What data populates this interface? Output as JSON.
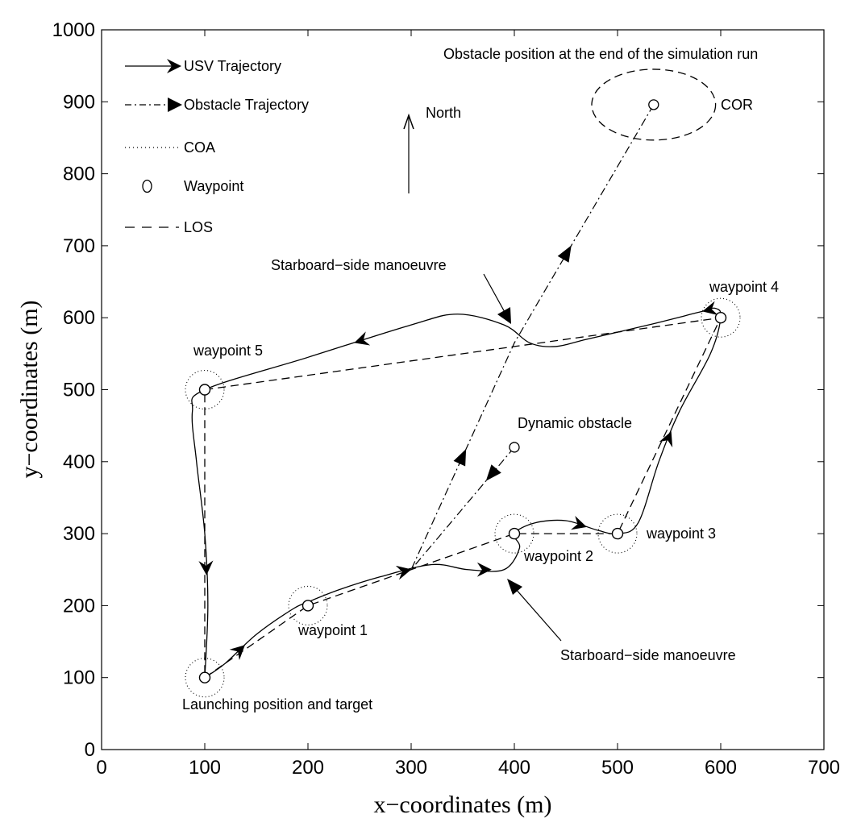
{
  "chart_data": {
    "type": "line",
    "xlabel": "x−coordinates (m)",
    "ylabel": "y−coordinates (m)",
    "xlim": [
      0,
      700
    ],
    "ylim": [
      0,
      1000
    ],
    "xticks": [
      0,
      100,
      200,
      300,
      400,
      500,
      600,
      700
    ],
    "yticks": [
      0,
      100,
      200,
      300,
      400,
      500,
      600,
      700,
      800,
      900,
      1000
    ],
    "grid": false,
    "legend_placement": "top-left",
    "legend": [
      {
        "label": "USV Trajectory",
        "style": "solid-arrow"
      },
      {
        "label": "Obstacle Trajectory",
        "style": "dashdot-triangle"
      },
      {
        "label": "COA",
        "style": "dotted"
      },
      {
        "label": "Waypoint",
        "style": "circle-marker"
      },
      {
        "label": "LOS",
        "style": "dashed"
      }
    ],
    "north_label": "North",
    "waypoints": [
      {
        "name": "Launching position and target",
        "x": 100,
        "y": 100
      },
      {
        "name": "waypoint 1",
        "x": 200,
        "y": 200
      },
      {
        "name": "waypoint 2",
        "x": 400,
        "y": 300
      },
      {
        "name": "waypoint 3",
        "x": 500,
        "y": 300
      },
      {
        "name": "waypoint 4",
        "x": 600,
        "y": 600
      },
      {
        "name": "waypoint 5",
        "x": 100,
        "y": 500
      }
    ],
    "annotations": [
      "Launching position and target",
      "waypoint 1",
      "waypoint 2",
      "waypoint 3",
      "waypoint 4",
      "waypoint 5",
      "Dynamic obstacle",
      "Starboard−side manoeuvre",
      "Starboard−side manoeuvre",
      "Obstacle position at the end of the simulation run",
      "COR"
    ],
    "series": [
      {
        "name": "LOS",
        "x": [
          100,
          200,
          400,
          500,
          600,
          100,
          100
        ],
        "y": [
          100,
          200,
          300,
          300,
          600,
          500,
          100
        ]
      },
      {
        "name": "USV Trajectory",
        "x": [
          100,
          120,
          150,
          185,
          200,
          230,
          270,
          320,
          355,
          390,
          405,
          400,
          420,
          450,
          480,
          500,
          520,
          540,
          560,
          590,
          600,
          595,
          580,
          530,
          470,
          440,
          415,
          390,
          345,
          300,
          200,
          100,
          88,
          92,
          100,
          103,
          100
        ],
        "y": [
          100,
          120,
          160,
          195,
          205,
          222,
          240,
          257,
          250,
          250,
          280,
          300,
          315,
          318,
          305,
          300,
          315,
          400,
          470,
          550,
          600,
          613,
          608,
          590,
          570,
          560,
          565,
          590,
          605,
          590,
          545,
          500,
          470,
          400,
          300,
          200,
          100
        ]
      },
      {
        "name": "Obstacle Trajectory",
        "x": [
          400,
          350,
          300,
          400,
          535
        ],
        "y": [
          420,
          335,
          250,
          565,
          896
        ]
      },
      {
        "name": "Dynamic obstacle",
        "x": [
          400
        ],
        "y": [
          420
        ]
      },
      {
        "name": "Obstacle position at the end of the simulation run",
        "x": [
          535
        ],
        "y": [
          896
        ]
      }
    ],
    "cor": {
      "label": "COR",
      "x": 535,
      "y": 896,
      "rx": 60,
      "ry": 60
    }
  }
}
